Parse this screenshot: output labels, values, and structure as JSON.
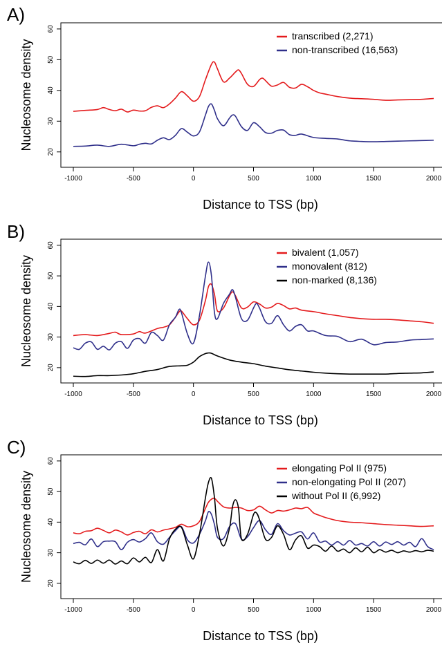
{
  "colors": {
    "red": "#e41a1c",
    "blue": "#2f2f8a",
    "black": "#000000"
  },
  "chart_data": [
    {
      "type": "line",
      "panel": "A)",
      "xlabel": "Distance to TSS (bp)",
      "ylabel": "Nucleosome density",
      "xlim": [
        -1000,
        2000
      ],
      "ylim": [
        15,
        62
      ],
      "xticks": [
        "-1000",
        "-500",
        "0",
        "500",
        "1000",
        "1500",
        "2000"
      ],
      "yticks": [
        "20",
        "30",
        "40",
        "50",
        "60"
      ],
      "legend_position": "top-right",
      "series": [
        {
          "name": "transcribed (2,271)",
          "color": "#e41a1c",
          "x": [
            -1000,
            -900,
            -800,
            -750,
            -700,
            -650,
            -600,
            -550,
            -500,
            -450,
            -400,
            -350,
            -300,
            -250,
            -200,
            -150,
            -100,
            -50,
            0,
            50,
            100,
            150,
            175,
            200,
            250,
            300,
            350,
            375,
            400,
            450,
            500,
            550,
            575,
            600,
            650,
            700,
            750,
            800,
            850,
            900,
            950,
            1000,
            1050,
            1100,
            1200,
            1300,
            1400,
            1500,
            1600,
            1700,
            1800,
            1900,
            2000
          ],
          "y": [
            33.2,
            33.5,
            33.8,
            34.4,
            33.8,
            33.4,
            33.9,
            33,
            33.6,
            33.3,
            33.4,
            34.5,
            35,
            34.4,
            35.6,
            37.5,
            39.6,
            38.2,
            36.5,
            38,
            43.5,
            48.5,
            49.2,
            47,
            42.8,
            44,
            46,
            46.7,
            45.5,
            42,
            41.3,
            43.5,
            44,
            43.2,
            41.4,
            41.8,
            42.6,
            41,
            40.8,
            42,
            41.2,
            40,
            39.2,
            38.8,
            38,
            37.5,
            37.3,
            37.1,
            36.8,
            36.9,
            37,
            37.1,
            37.4
          ]
        },
        {
          "name": "non-transcribed (16,563)",
          "color": "#2f2f8a",
          "x": [
            -1000,
            -900,
            -800,
            -700,
            -600,
            -500,
            -450,
            -400,
            -350,
            -300,
            -250,
            -200,
            -150,
            -100,
            -50,
            0,
            50,
            100,
            125,
            150,
            175,
            200,
            250,
            300,
            325,
            350,
            400,
            450,
            500,
            550,
            600,
            650,
            700,
            750,
            800,
            850,
            900,
            1000,
            1100,
            1200,
            1300,
            1400,
            1500,
            1600,
            1700,
            1800,
            1900,
            2000
          ],
          "y": [
            21.8,
            21.9,
            22.2,
            21.8,
            22.5,
            22,
            22.5,
            22.8,
            22.6,
            23.8,
            24.6,
            24,
            25.4,
            27.6,
            26.4,
            25.2,
            26.5,
            32,
            34.8,
            35.6,
            33.5,
            30.8,
            28.5,
            31,
            32,
            31.6,
            28.2,
            27,
            29.5,
            28.2,
            26.3,
            26.1,
            27,
            27.1,
            25.6,
            25.4,
            25.8,
            24.7,
            24.4,
            24.2,
            23.6,
            23.4,
            23.3,
            23.4,
            23.5,
            23.6,
            23.7,
            23.8
          ]
        }
      ]
    },
    {
      "type": "line",
      "panel": "B)",
      "xlabel": "Distance to TSS (bp)",
      "ylabel": "Nucleosome density",
      "xlim": [
        -1000,
        2000
      ],
      "ylim": [
        15,
        62
      ],
      "xticks": [
        "-1000",
        "-500",
        "0",
        "500",
        "1000",
        "1500",
        "2000"
      ],
      "yticks": [
        "20",
        "30",
        "40",
        "50",
        "60"
      ],
      "legend_position": "top-right",
      "series": [
        {
          "name": "bivalent (1,057)",
          "color": "#e41a1c",
          "x": [
            -1000,
            -900,
            -800,
            -700,
            -650,
            -600,
            -500,
            -450,
            -400,
            -300,
            -250,
            -200,
            -150,
            -120,
            -100,
            -50,
            0,
            50,
            100,
            125,
            150,
            175,
            200,
            250,
            300,
            325,
            350,
            400,
            450,
            500,
            550,
            600,
            650,
            700,
            750,
            800,
            850,
            900,
            1000,
            1100,
            1200,
            1300,
            1400,
            1500,
            1600,
            1700,
            1800,
            1900,
            2000
          ],
          "y": [
            30.5,
            30.8,
            30.5,
            31.2,
            31.6,
            30.8,
            31,
            31.8,
            31.3,
            32.8,
            33.2,
            34,
            36.5,
            38.2,
            38.5,
            36,
            34,
            35.5,
            42,
            46.5,
            47.2,
            44,
            38.5,
            39.5,
            43.5,
            44.8,
            43.5,
            39.5,
            39.8,
            41.5,
            40.8,
            39.5,
            39.8,
            41,
            40.3,
            39.2,
            39.5,
            38.8,
            38.3,
            37.6,
            37,
            36.4,
            36,
            35.8,
            35.8,
            35.6,
            35.3,
            35,
            34.5
          ]
        },
        {
          "name": "monovalent (812)",
          "color": "#2f2f8a",
          "x": [
            -1000,
            -950,
            -900,
            -850,
            -800,
            -750,
            -700,
            -650,
            -600,
            -550,
            -500,
            -450,
            -400,
            -350,
            -300,
            -250,
            -200,
            -150,
            -120,
            -100,
            -50,
            0,
            50,
            100,
            125,
            150,
            175,
            200,
            250,
            300,
            325,
            350,
            400,
            450,
            500,
            525,
            550,
            600,
            650,
            700,
            750,
            800,
            850,
            900,
            950,
            1000,
            1100,
            1200,
            1300,
            1400,
            1500,
            1600,
            1700,
            1800,
            1900,
            2000
          ],
          "y": [
            26.5,
            26,
            28,
            28.4,
            26,
            27,
            25.8,
            28,
            28.5,
            26.3,
            29,
            29.5,
            28,
            31.5,
            30.5,
            29,
            34,
            36.5,
            39,
            38,
            31,
            28,
            37,
            50,
            54.5,
            50,
            38,
            36,
            41,
            44,
            45.5,
            43,
            36,
            35.5,
            39.5,
            41,
            39.5,
            35,
            34.5,
            37,
            34,
            32,
            33.5,
            34,
            32,
            32,
            30.5,
            30.2,
            28.5,
            29.3,
            27.5,
            28.2,
            28.4,
            29,
            29.2,
            29.4
          ]
        },
        {
          "name": "non-marked (8,136)",
          "color": "#000000",
          "x": [
            -1000,
            -900,
            -800,
            -700,
            -600,
            -500,
            -400,
            -300,
            -200,
            -100,
            -50,
            0,
            50,
            100,
            125,
            150,
            200,
            300,
            400,
            500,
            600,
            700,
            800,
            900,
            1000,
            1100,
            1200,
            1300,
            1400,
            1500,
            1600,
            1700,
            1800,
            1900,
            2000
          ],
          "y": [
            17.2,
            17.1,
            17.4,
            17.4,
            17.6,
            18,
            18.8,
            19.4,
            20.4,
            20.6,
            20.8,
            21.8,
            23.6,
            24.6,
            24.8,
            24.7,
            23.8,
            22.5,
            21.8,
            21.3,
            20.5,
            19.9,
            19.3,
            18.9,
            18.5,
            18.2,
            18,
            17.9,
            17.9,
            17.9,
            17.9,
            18.1,
            18.2,
            18.3,
            18.6
          ]
        }
      ]
    },
    {
      "type": "line",
      "panel": "C)",
      "xlabel": "Distance to TSS (bp)",
      "ylabel": "Nucleosome density",
      "xlim": [
        -1000,
        2000
      ],
      "ylim": [
        15,
        62
      ],
      "xticks": [
        "-1000",
        "-500",
        "0",
        "500",
        "1000",
        "1500",
        "2000"
      ],
      "yticks": [
        "20",
        "30",
        "40",
        "50",
        "60"
      ],
      "legend_position": "top-right",
      "series": [
        {
          "name": "elongating Pol II (975)",
          "color": "#e41a1c",
          "x": [
            -1000,
            -950,
            -900,
            -850,
            -800,
            -750,
            -700,
            -650,
            -600,
            -550,
            -500,
            -450,
            -400,
            -350,
            -300,
            -250,
            -200,
            -150,
            -100,
            -50,
            0,
            50,
            100,
            125,
            150,
            175,
            200,
            250,
            300,
            350,
            400,
            450,
            500,
            550,
            600,
            650,
            700,
            750,
            800,
            850,
            900,
            950,
            1000,
            1050,
            1100,
            1200,
            1300,
            1400,
            1500,
            1600,
            1700,
            1800,
            1900,
            2000
          ],
          "y": [
            36.5,
            36.2,
            37,
            37.2,
            38,
            37.3,
            36.5,
            37.4,
            36.8,
            35.8,
            36.6,
            37,
            36.2,
            37.5,
            36.8,
            37.4,
            37.8,
            38.3,
            39.3,
            38.5,
            38.8,
            40.2,
            44.5,
            46.5,
            47.5,
            47.8,
            46.8,
            45,
            44.6,
            44.8,
            44.6,
            43.8,
            44,
            45.2,
            44,
            43,
            43.8,
            43.6,
            44,
            44.6,
            44.4,
            44.8,
            43,
            42.2,
            41.5,
            40.5,
            40,
            39.8,
            39.5,
            39.2,
            39,
            38.8,
            38.6,
            38.8
          ]
        },
        {
          "name": "non-elongating Pol II (207)",
          "color": "#2f2f8a",
          "x": [
            -1000,
            -950,
            -900,
            -850,
            -800,
            -750,
            -700,
            -650,
            -600,
            -550,
            -500,
            -450,
            -400,
            -350,
            -300,
            -250,
            -200,
            -150,
            -100,
            -50,
            0,
            50,
            100,
            125,
            150,
            175,
            200,
            250,
            300,
            350,
            400,
            450,
            500,
            550,
            600,
            650,
            700,
            750,
            800,
            850,
            900,
            950,
            1000,
            1050,
            1100,
            1150,
            1200,
            1250,
            1300,
            1350,
            1400,
            1450,
            1500,
            1550,
            1600,
            1650,
            1700,
            1750,
            1800,
            1850,
            1900,
            1950,
            2000
          ],
          "y": [
            33,
            33.4,
            32.6,
            34.5,
            32,
            33.6,
            33.8,
            33.6,
            31,
            33.4,
            34.3,
            33.5,
            34.6,
            36.5,
            33.6,
            32.8,
            35,
            37.2,
            38.5,
            34.2,
            33.2,
            36,
            40.5,
            43.4,
            42.5,
            39.2,
            35,
            34.6,
            38.5,
            39.5,
            34.4,
            35.2,
            38.2,
            40.5,
            37.5,
            36,
            39.5,
            37.2,
            35.8,
            36.4,
            36.8,
            34.5,
            36.5,
            33.5,
            33.8,
            32.5,
            33.6,
            32.5,
            34,
            32.5,
            33,
            32.2,
            33.6,
            32.2,
            33.5,
            32.7,
            33.6,
            32.5,
            33.4,
            32,
            34.6,
            32,
            31
          ]
        },
        {
          "name": "without Pol II (6,992)",
          "color": "#000000",
          "x": [
            -1000,
            -950,
            -900,
            -850,
            -800,
            -750,
            -700,
            -650,
            -600,
            -550,
            -500,
            -450,
            -400,
            -350,
            -300,
            -250,
            -200,
            -150,
            -100,
            -50,
            0,
            50,
            100,
            125,
            150,
            175,
            200,
            250,
            300,
            325,
            350,
            375,
            400,
            450,
            500,
            525,
            550,
            600,
            650,
            700,
            750,
            800,
            850,
            900,
            950,
            1000,
            1050,
            1100,
            1150,
            1200,
            1250,
            1300,
            1350,
            1400,
            1450,
            1500,
            1550,
            1600,
            1650,
            1700,
            1750,
            1800,
            1850,
            1900,
            1950,
            2000
          ],
          "y": [
            27,
            26.4,
            27.5,
            26.5,
            27.6,
            26.6,
            27.6,
            26.3,
            27.3,
            26.4,
            28.3,
            27,
            28.5,
            26.8,
            31,
            27.3,
            34.5,
            37.7,
            38.3,
            32.5,
            28,
            36,
            48,
            53,
            54.3,
            48,
            38,
            32.2,
            38,
            45,
            47.3,
            44.5,
            34.5,
            36,
            42.5,
            43,
            40.8,
            34.4,
            35,
            38.8,
            36,
            31,
            34.2,
            35.5,
            31.5,
            32.5,
            32,
            30.5,
            32.2,
            30.5,
            31.2,
            30,
            31.6,
            30.3,
            31.8,
            30,
            31,
            30.2,
            30.8,
            30,
            30.6,
            30.2,
            30.7,
            30.3,
            30.8,
            30.5
          ]
        }
      ]
    }
  ]
}
